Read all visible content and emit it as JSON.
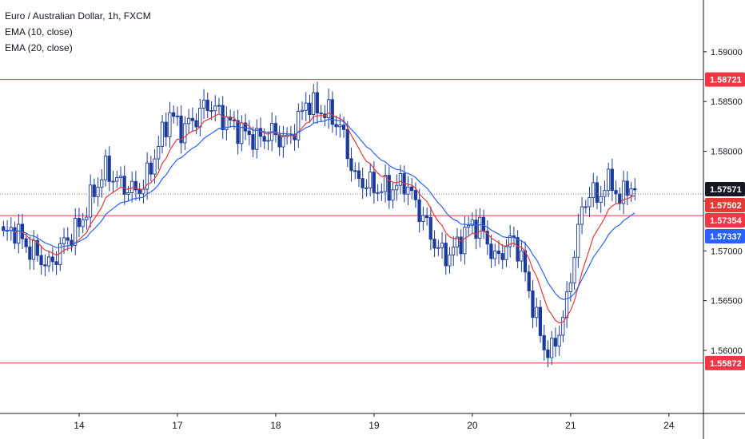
{
  "legend": {
    "symbol": "Euro / Australian Dollar, 1h, FXCM",
    "ema10": "EMA (10, close)",
    "ema20": "EMA (20, close)"
  },
  "colors": {
    "up": "#ffffff",
    "down": "#1a3a9c",
    "wick": "#1a3a9c",
    "ema10": "#e53935",
    "ema20": "#2962ff",
    "hline": "#f23645",
    "axis": "#131722",
    "price_tag": "#131722",
    "ema10_tag": "#e53935",
    "ema20_tag": "#2962ff",
    "hline_tag": "#f23645"
  },
  "chart_data": {
    "type": "candlestick",
    "symbol": "EURAUD",
    "timeframe": "1h",
    "ylim": [
      1.5535,
      1.594
    ],
    "y_ticks": [
      "1.59000",
      "1.58500",
      "1.58000",
      "1.57500",
      "1.57000",
      "1.56500",
      "1.56000"
    ],
    "y_tick_values": [
      1.59,
      1.585,
      1.58,
      1.575,
      1.57,
      1.565,
      1.56
    ],
    "x_ticks": [
      "14",
      "17",
      "18",
      "19",
      "20",
      "21",
      "24"
    ],
    "x_tick_bars": [
      20,
      46,
      72,
      98,
      124,
      150,
      176
    ],
    "bar_count": 168,
    "current_price": "1.57571",
    "ema10_last": "1.57502",
    "ema20_last": "1.57337",
    "horizontal_levels": [
      {
        "value": 1.58721,
        "label": "1.58721"
      },
      {
        "value": 1.57354,
        "label": "1.57354"
      },
      {
        "value": 1.55872,
        "label": "1.55872"
      }
    ],
    "anchors": [
      [
        0,
        1.5715
      ],
      [
        3,
        1.5722
      ],
      [
        6,
        1.5705
      ],
      [
        10,
        1.5692
      ],
      [
        12,
        1.5684
      ],
      [
        16,
        1.5708
      ],
      [
        20,
        1.5725
      ],
      [
        24,
        1.576
      ],
      [
        27,
        1.5782
      ],
      [
        30,
        1.577
      ],
      [
        34,
        1.576
      ],
      [
        37,
        1.5765
      ],
      [
        40,
        1.5795
      ],
      [
        44,
        1.5838
      ],
      [
        47,
        1.5822
      ],
      [
        50,
        1.583
      ],
      [
        54,
        1.5848
      ],
      [
        57,
        1.5838
      ],
      [
        60,
        1.5828
      ],
      [
        63,
        1.582
      ],
      [
        67,
        1.5812
      ],
      [
        71,
        1.5818
      ],
      [
        75,
        1.581
      ],
      [
        78,
        1.583
      ],
      [
        80,
        1.585
      ],
      [
        83,
        1.5842
      ],
      [
        86,
        1.5838
      ],
      [
        89,
        1.5825
      ],
      [
        91,
        1.58
      ],
      [
        93,
        1.5772
      ],
      [
        96,
        1.5768
      ],
      [
        99,
        1.5762
      ],
      [
        103,
        1.5762
      ],
      [
        106,
        1.577
      ],
      [
        109,
        1.5748
      ],
      [
        112,
        1.5725
      ],
      [
        115,
        1.57
      ],
      [
        118,
        1.5695
      ],
      [
        121,
        1.5712
      ],
      [
        124,
        1.5728
      ],
      [
        126,
        1.5724
      ],
      [
        128,
        1.571
      ],
      [
        130,
        1.569
      ],
      [
        132,
        1.57
      ],
      [
        135,
        1.5712
      ],
      [
        137,
        1.5692
      ],
      [
        139,
        1.566
      ],
      [
        141,
        1.563
      ],
      [
        143,
        1.5603
      ],
      [
        145,
        1.5598
      ],
      [
        147,
        1.562
      ],
      [
        149,
        1.5648
      ],
      [
        151,
        1.57
      ],
      [
        153,
        1.574
      ],
      [
        155,
        1.576
      ],
      [
        157,
        1.5752
      ],
      [
        159,
        1.5765
      ],
      [
        161,
        1.577
      ],
      [
        163,
        1.5748
      ],
      [
        165,
        1.5768
      ],
      [
        167,
        1.5757
      ]
    ]
  }
}
